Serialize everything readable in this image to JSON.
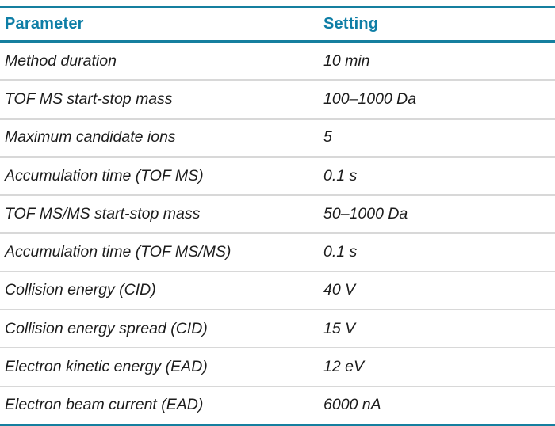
{
  "table": {
    "columns": [
      {
        "label": "Parameter"
      },
      {
        "label": "Setting"
      }
    ],
    "rows": [
      {
        "parameter": "Method duration",
        "setting": "10 min"
      },
      {
        "parameter": "TOF MS start-stop mass",
        "setting": "100–1000 Da"
      },
      {
        "parameter": "Maximum candidate ions",
        "setting": "5"
      },
      {
        "parameter": "Accumulation time (TOF MS)",
        "setting": "0.1 s"
      },
      {
        "parameter": "TOF MS/MS start-stop mass",
        "setting": "50–1000 Da"
      },
      {
        "parameter": "Accumulation time (TOF MS/MS)",
        "setting": "0.1 s"
      },
      {
        "parameter": "Collision energy (CID)",
        "setting": "40 V"
      },
      {
        "parameter": "Collision energy spread (CID)",
        "setting": "15 V"
      },
      {
        "parameter": "Electron kinetic energy (EAD)",
        "setting": "12 eV"
      },
      {
        "parameter": "Electron beam current (EAD)",
        "setting": "6000 nA"
      }
    ],
    "colors": {
      "accent_teal": "#157f9f",
      "header_text_teal": "#0e7ea6",
      "separator_gray": "#d8d8d8",
      "body_text": "#1c1c1c"
    }
  }
}
